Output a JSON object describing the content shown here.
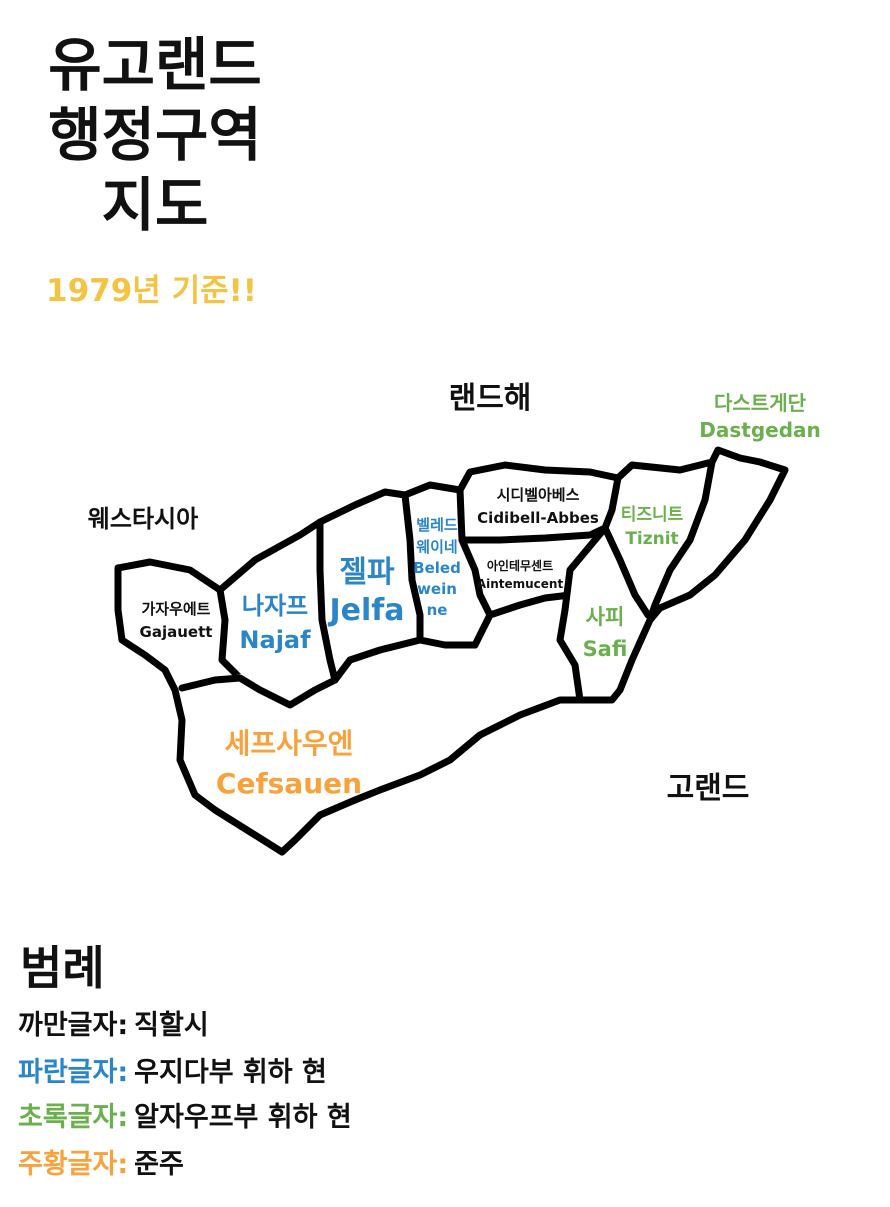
{
  "title": {
    "line1": "유고랜드",
    "line2": "행정구역",
    "line3": "지도"
  },
  "subtitle": "1979년 기준!!",
  "colors": {
    "black": "#111111",
    "blue": "#2a86c8",
    "green": "#6ab04c",
    "orange": "#f7a23a",
    "yellow": "#f5c342"
  },
  "surroundings": {
    "north_sea": "랜드해",
    "west": "웨스타시아",
    "south_east": "고랜드",
    "north_east": {
      "ko": "다스트게단",
      "en": "Dastgedan"
    }
  },
  "regions": {
    "gajauett": {
      "ko": "가자우에트",
      "en": "Gajauett"
    },
    "najaf": {
      "ko": "나자프",
      "en": "Najaf"
    },
    "jelfa": {
      "ko": "젤파",
      "en": "Jelfa"
    },
    "beledweine": {
      "ko1": "벨레드",
      "ko2": "웨이네",
      "en1": "Beled",
      "en2": "wein",
      "en3": "ne"
    },
    "cidibell": {
      "ko": "시디벨아베스",
      "en": "Cidibell-Abbes"
    },
    "aintemucent": {
      "ko": "아인테무센트",
      "en": "Aintemucent"
    },
    "tiznit": {
      "ko": "티즈니트",
      "en": "Tiznit"
    },
    "safi": {
      "ko": "사피",
      "en": "Safi"
    },
    "cefsauen": {
      "ko": "세프사우엔",
      "en": "Cefsauen"
    }
  },
  "legend": {
    "title": "범례",
    "rows": [
      {
        "key": "까만글자:",
        "value": "직할시",
        "color": "#111111"
      },
      {
        "key": "파란글자:",
        "value": "우지다부 휘하 현",
        "color": "#2a86c8"
      },
      {
        "key": "초록글자:",
        "value": "알자우프부 휘하 현",
        "color": "#6ab04c"
      },
      {
        "key": "주황글자:",
        "value": "준주",
        "color": "#f7a23a"
      }
    ]
  }
}
